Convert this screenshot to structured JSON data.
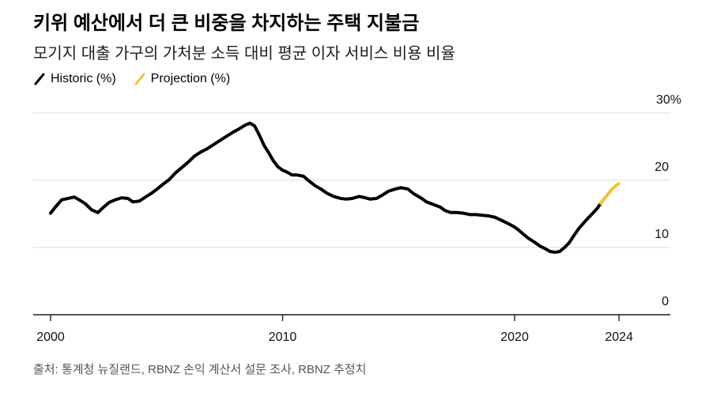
{
  "chart_data": {
    "type": "line",
    "title": "키위 예산에서 더 큰 비중을 차지하는 주택 지불금",
    "subtitle": "모기지 대출 가구의 가처분 소득 대비 평균 이자 서비스 비용 비율",
    "xlabel": "",
    "ylabel": "",
    "xlim": [
      1999.25,
      2026.71
    ],
    "ylim": [
      0,
      30
    ],
    "grid": true,
    "legend_position": "top-left",
    "x_ticks": [
      {
        "value": 2000,
        "label": "2000"
      },
      {
        "value": 2010,
        "label": "2010"
      },
      {
        "value": 2020,
        "label": "2020"
      },
      {
        "value": 2024.5,
        "label": "2024"
      }
    ],
    "y_ticks": [
      {
        "value": 0,
        "label": "0"
      },
      {
        "value": 10,
        "label": "10"
      },
      {
        "value": 20,
        "label": "20"
      },
      {
        "value": 30,
        "label": "30%"
      }
    ],
    "series": [
      {
        "name": "Historic (%)",
        "color": "#000000",
        "x": [
          2000.0,
          2000.2,
          2000.48,
          2000.75,
          2001.02,
          2001.23,
          2001.5,
          2001.77,
          2002.04,
          2002.25,
          2002.52,
          2002.79,
          2003.07,
          2003.34,
          2003.54,
          2003.82,
          2004.09,
          2004.36,
          2004.63,
          2004.84,
          2005.11,
          2005.38,
          2005.66,
          2005.93,
          2006.2,
          2006.47,
          2006.75,
          2007.02,
          2007.29,
          2007.56,
          2007.84,
          2008.1,
          2008.38,
          2008.59,
          2008.79,
          2009.0,
          2009.2,
          2009.4,
          2009.6,
          2009.8,
          2010.0,
          2010.2,
          2010.4,
          2010.6,
          2010.9,
          2011.1,
          2011.4,
          2011.65,
          2011.9,
          2012.2,
          2012.5,
          2012.74,
          2013.0,
          2013.3,
          2013.56,
          2013.77,
          2014.04,
          2014.3,
          2014.58,
          2014.86,
          2015.1,
          2015.4,
          2015.65,
          2015.95,
          2016.2,
          2016.5,
          2016.8,
          2017.0,
          2017.24,
          2017.5,
          2017.8,
          2018.06,
          2018.33,
          2018.6,
          2018.88,
          2019.15,
          2019.4,
          2019.7,
          2019.97,
          2020.17,
          2020.37,
          2020.58,
          2020.85,
          2021.1,
          2021.33,
          2021.53,
          2021.74,
          2021.94,
          2022.15,
          2022.35,
          2022.56,
          2022.76,
          2022.96,
          2023.17,
          2023.37,
          2023.58,
          2023.71
        ],
        "y": [
          15.1,
          16.0,
          17.1,
          17.3,
          17.5,
          17.1,
          16.5,
          15.6,
          15.2,
          15.9,
          16.7,
          17.1,
          17.4,
          17.3,
          16.8,
          16.9,
          17.5,
          18.1,
          18.8,
          19.4,
          20.1,
          21.1,
          21.9,
          22.7,
          23.6,
          24.2,
          24.7,
          25.3,
          25.9,
          26.5,
          27.1,
          27.6,
          28.2,
          28.5,
          28.1,
          26.7,
          25.2,
          24.1,
          22.9,
          22.0,
          21.5,
          21.2,
          20.8,
          20.8,
          20.6,
          20.0,
          19.2,
          18.7,
          18.1,
          17.6,
          17.3,
          17.2,
          17.3,
          17.6,
          17.4,
          17.2,
          17.3,
          17.8,
          18.4,
          18.7,
          18.9,
          18.7,
          18.0,
          17.4,
          16.8,
          16.4,
          16.0,
          15.5,
          15.2,
          15.2,
          15.1,
          14.9,
          14.9,
          14.8,
          14.7,
          14.5,
          14.1,
          13.6,
          13.1,
          12.6,
          12.0,
          11.4,
          10.8,
          10.2,
          9.8,
          9.4,
          9.3,
          9.4,
          10.0,
          10.7,
          11.8,
          12.8,
          13.6,
          14.4,
          15.1,
          15.9,
          16.6
        ]
      },
      {
        "name": "Projection (%)",
        "color": "#f2c232",
        "x": [
          2023.71,
          2023.92,
          2024.12,
          2024.33,
          2024.48
        ],
        "y": [
          16.6,
          17.5,
          18.4,
          19.1,
          19.5
        ]
      }
    ],
    "source": "출처: 통계청 뉴질랜드, RBNZ 손익 계산서 설문 조사, RBNZ 추정치"
  }
}
